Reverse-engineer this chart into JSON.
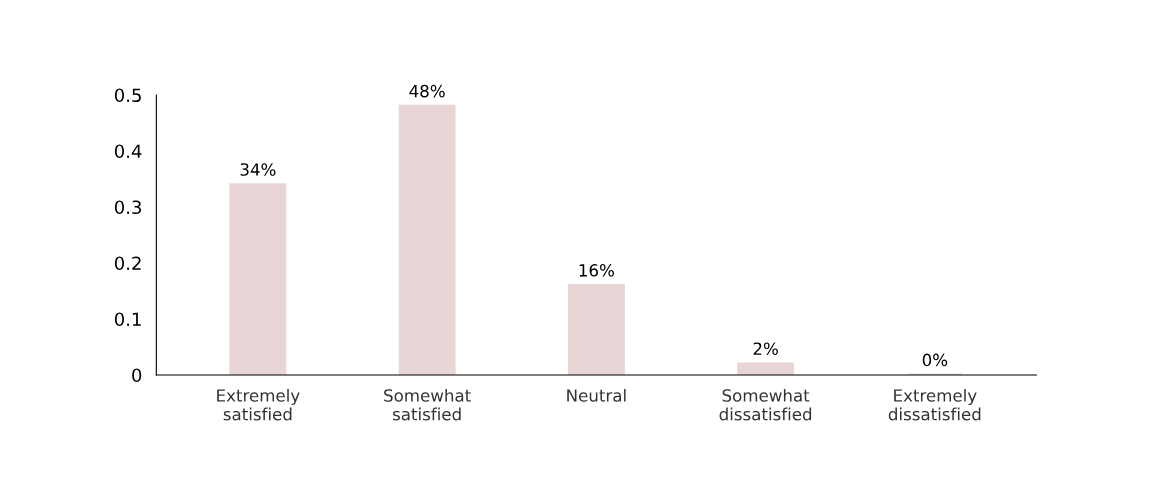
{
  "chart_data": {
    "type": "bar",
    "categories": [
      "Extremely\nsatisfied",
      "Somewhat\nsatisfied",
      "Neutral",
      "Somewhat\ndissatisfied",
      "Extremely\ndissatisfied"
    ],
    "values": [
      0.34,
      0.48,
      0.16,
      0.02,
      0
    ],
    "value_labels": [
      "34%",
      "48%",
      "16%",
      "2%",
      "0%"
    ],
    "color": "#e8d6d6",
    "ylim": [
      0,
      0.5
    ],
    "yticks": [
      0,
      0.1,
      0.2,
      0.3,
      0.4,
      0.5
    ],
    "grid": false,
    "legend": false
  }
}
